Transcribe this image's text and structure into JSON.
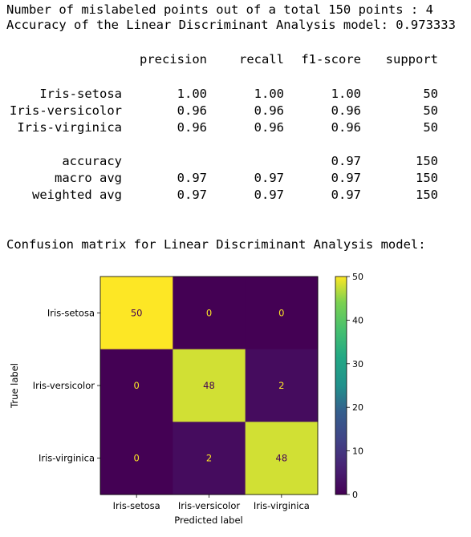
{
  "output": {
    "line1": "Number of mislabeled points out of a total 150 points : 4",
    "line2": "Accuracy of the Linear Discriminant Analysis model: 0.973333",
    "confusion_heading": "Confusion matrix for Linear Discriminant Analysis model:"
  },
  "report": {
    "headers": [
      "precision",
      "recall",
      "f1-score",
      "support"
    ],
    "rows": [
      {
        "label": "Iris-setosa",
        "precision": "1.00",
        "recall": "1.00",
        "f1": "1.00",
        "support": "50"
      },
      {
        "label": "Iris-versicolor",
        "precision": "0.96",
        "recall": "0.96",
        "f1": "0.96",
        "support": "50"
      },
      {
        "label": "Iris-virginica",
        "precision": "0.96",
        "recall": "0.96",
        "f1": "0.96",
        "support": "50"
      }
    ],
    "summary": [
      {
        "label": "accuracy",
        "precision": "",
        "recall": "",
        "f1": "0.97",
        "support": "150"
      },
      {
        "label": "macro avg",
        "precision": "0.97",
        "recall": "0.97",
        "f1": "0.97",
        "support": "150"
      },
      {
        "label": "weighted avg",
        "precision": "0.97",
        "recall": "0.97",
        "f1": "0.97",
        "support": "150"
      }
    ]
  },
  "chart_data": {
    "type": "heatmap",
    "title": "",
    "xlabel": "Predicted label",
    "ylabel": "True label",
    "x_categories": [
      "Iris-setosa",
      "Iris-versicolor",
      "Iris-virginica"
    ],
    "y_categories": [
      "Iris-setosa",
      "Iris-versicolor",
      "Iris-virginica"
    ],
    "values": [
      [
        50,
        0,
        0
      ],
      [
        0,
        48,
        2
      ],
      [
        0,
        2,
        48
      ]
    ],
    "colormap": "viridis",
    "colorbar_range": [
      0,
      50
    ],
    "colorbar_ticks": [
      0,
      10,
      20,
      30,
      40,
      50
    ],
    "colors": {
      "min": "#440154",
      "max": "#fde725",
      "low_text": "#fde725",
      "high_text": "#440154"
    }
  }
}
